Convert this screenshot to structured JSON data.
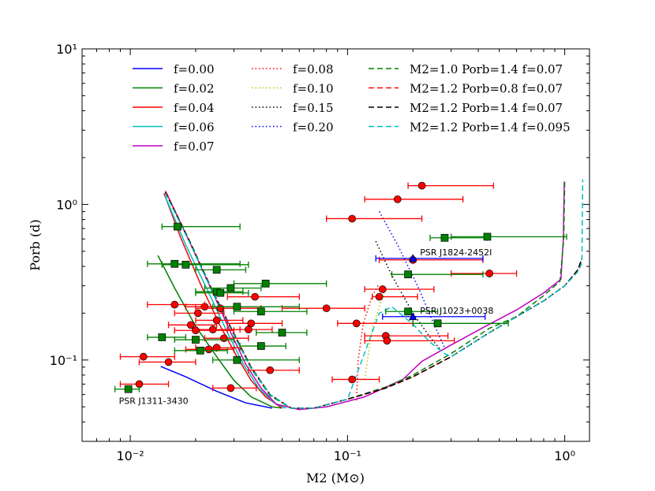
{
  "chart_data": {
    "type": "scatter",
    "title": "",
    "xlabel": "M2 (M⊙)",
    "ylabel": "Porb (d)",
    "x_scale": "log",
    "y_scale": "log",
    "xlim": [
      0.006,
      1.3
    ],
    "ylim": [
      0.03,
      10
    ],
    "x_ticks": [
      {
        "value": 0.01,
        "label": "10⁻²"
      },
      {
        "value": 0.1,
        "label": "10⁻¹"
      },
      {
        "value": 1,
        "label": "10⁰"
      }
    ],
    "y_ticks": [
      {
        "value": 0.1,
        "label": "10⁻¹"
      },
      {
        "value": 1,
        "label": "10⁰"
      },
      {
        "value": 10,
        "label": "10¹"
      }
    ],
    "legend_position": "top",
    "legend": [
      {
        "label": "f=0.00",
        "color": "#0000ff",
        "style": "solid"
      },
      {
        "label": "f=0.02",
        "color": "#008000",
        "style": "solid"
      },
      {
        "label": "f=0.04",
        "color": "#ff0000",
        "style": "solid"
      },
      {
        "label": "f=0.06",
        "color": "#00bfbf",
        "style": "solid"
      },
      {
        "label": "f=0.07",
        "color": "#bf00bf",
        "style": "solid"
      },
      {
        "label": "f=0.08",
        "color": "#ff0000",
        "style": "dotted"
      },
      {
        "label": "f=0.10",
        "color": "#bfbf00",
        "style": "dotted"
      },
      {
        "label": "f=0.15",
        "color": "#000000",
        "style": "dotted"
      },
      {
        "label": "f=0.20",
        "color": "#0000ff",
        "style": "dotted"
      },
      {
        "label": "M2=1.0 Porb=1.4 f=0.07",
        "color": "#008000",
        "style": "dashed"
      },
      {
        "label": "M2=1.2 Porb=0.8 f=0.07",
        "color": "#ff0000",
        "style": "dashed"
      },
      {
        "label": "M2=1.2 Porb=1.4 f=0.07",
        "color": "#000000",
        "style": "dashed"
      },
      {
        "label": "M2=1.2 Porb=1.4 f=0.095",
        "color": "#00bfbf",
        "style": "dashed"
      }
    ],
    "series": [
      {
        "name": "f=0.00",
        "color": "#0000ff",
        "style": "solid",
        "points": [
          [
            0.0138,
            0.091
          ],
          [
            0.018,
            0.078
          ],
          [
            0.025,
            0.063
          ],
          [
            0.034,
            0.053
          ],
          [
            0.045,
            0.049
          ]
        ]
      },
      {
        "name": "f=0.02",
        "color": "#008000",
        "style": "solid",
        "points": [
          [
            0.0134,
            0.47
          ],
          [
            0.016,
            0.29
          ],
          [
            0.02,
            0.165
          ],
          [
            0.025,
            0.105
          ],
          [
            0.03,
            0.074
          ],
          [
            0.036,
            0.058
          ],
          [
            0.045,
            0.05
          ],
          [
            0.05,
            0.049
          ]
        ]
      },
      {
        "name": "f=0.04",
        "color": "#ff0000",
        "style": "solid",
        "points": [
          [
            0.0143,
            1.18
          ],
          [
            0.017,
            0.62
          ],
          [
            0.021,
            0.31
          ],
          [
            0.026,
            0.165
          ],
          [
            0.031,
            0.105
          ],
          [
            0.036,
            0.074
          ],
          [
            0.042,
            0.058
          ],
          [
            0.05,
            0.049
          ]
        ]
      },
      {
        "name": "f=0.06",
        "color": "#00bfbf",
        "style": "solid",
        "points": [
          [
            0.0145,
            1.12
          ],
          [
            0.018,
            0.55
          ],
          [
            0.023,
            0.27
          ],
          [
            0.028,
            0.15
          ],
          [
            0.033,
            0.095
          ],
          [
            0.039,
            0.066
          ],
          [
            0.046,
            0.053
          ],
          [
            0.052,
            0.049
          ]
        ]
      },
      {
        "name": "f=0.07",
        "color": "#bf00bf",
        "style": "solid",
        "points": [
          [
            0.0147,
            1.18
          ],
          [
            0.019,
            0.55
          ],
          [
            0.024,
            0.27
          ],
          [
            0.029,
            0.15
          ],
          [
            0.034,
            0.094
          ],
          [
            0.04,
            0.066
          ],
          [
            0.047,
            0.052
          ],
          [
            0.06,
            0.048
          ],
          [
            0.08,
            0.05
          ],
          [
            0.12,
            0.058
          ],
          [
            0.18,
            0.075
          ],
          [
            0.22,
            0.098
          ],
          [
            0.3,
            0.125
          ],
          [
            0.45,
            0.17
          ],
          [
            0.6,
            0.21
          ],
          [
            0.8,
            0.27
          ],
          [
            0.96,
            0.33
          ],
          [
            0.985,
            0.6
          ],
          [
            0.995,
            1.4
          ]
        ]
      },
      {
        "name": "f=0.08",
        "color": "#ff0000",
        "style": "dotted",
        "points": [
          [
            0.11,
            0.055
          ],
          [
            0.112,
            0.1
          ],
          [
            0.118,
            0.17
          ],
          [
            0.13,
            0.26
          ],
          [
            0.14,
            0.31
          ]
        ]
      },
      {
        "name": "f=0.10",
        "color": "#bfbf00",
        "style": "dotted",
        "points": [
          [
            0.12,
            0.075
          ],
          [
            0.13,
            0.16
          ],
          [
            0.15,
            0.29
          ]
        ]
      },
      {
        "name": "f=0.15",
        "color": "#000000",
        "style": "dotted",
        "points": [
          [
            0.135,
            0.58
          ],
          [
            0.16,
            0.35
          ],
          [
            0.2,
            0.2
          ],
          [
            0.24,
            0.14
          ],
          [
            0.27,
            0.115
          ]
        ]
      },
      {
        "name": "f=0.20",
        "color": "#0000ff",
        "style": "dotted",
        "points": [
          [
            0.14,
            0.9
          ],
          [
            0.17,
            0.55
          ],
          [
            0.21,
            0.3
          ],
          [
            0.25,
            0.17
          ],
          [
            0.28,
            0.12
          ]
        ]
      },
      {
        "name": "M2=1.0 Porb=1.4 f=0.07",
        "color": "#008000",
        "style": "dashed",
        "points": [
          [
            0.0145,
            1.2
          ],
          [
            0.019,
            0.55
          ],
          [
            0.024,
            0.27
          ],
          [
            0.03,
            0.145
          ],
          [
            0.036,
            0.088
          ],
          [
            0.044,
            0.059
          ],
          [
            0.055,
            0.049
          ],
          [
            0.07,
            0.049
          ],
          [
            0.1,
            0.056
          ],
          [
            0.15,
            0.067
          ],
          [
            0.2,
            0.08
          ],
          [
            0.3,
            0.11
          ],
          [
            0.45,
            0.16
          ],
          [
            0.6,
            0.19
          ],
          [
            0.8,
            0.26
          ],
          [
            0.95,
            0.32
          ],
          [
            0.99,
            0.6
          ],
          [
            1.0,
            1.45
          ]
        ]
      },
      {
        "name": "M2=1.2 Porb=0.8 f=0.07",
        "color": "#ff0000",
        "style": "dashed",
        "points": [
          [
            0.0145,
            1.22
          ],
          [
            0.019,
            0.56
          ],
          [
            0.024,
            0.275
          ],
          [
            0.03,
            0.148
          ],
          [
            0.036,
            0.09
          ],
          [
            0.044,
            0.06
          ],
          [
            0.055,
            0.049
          ],
          [
            0.07,
            0.049
          ],
          [
            0.1,
            0.056
          ],
          [
            0.15,
            0.066
          ],
          [
            0.2,
            0.078
          ],
          [
            0.3,
            0.105
          ],
          [
            0.45,
            0.15
          ],
          [
            0.6,
            0.19
          ],
          [
            0.8,
            0.24
          ],
          [
            1.0,
            0.3
          ],
          [
            1.15,
            0.38
          ],
          [
            1.2,
            0.45
          ]
        ]
      },
      {
        "name": "M2=1.2 Porb=1.4 f=0.07",
        "color": "#000000",
        "style": "dashed",
        "points": [
          [
            0.0145,
            1.2
          ],
          [
            0.019,
            0.56
          ],
          [
            0.024,
            0.275
          ],
          [
            0.03,
            0.148
          ],
          [
            0.036,
            0.09
          ],
          [
            0.044,
            0.06
          ],
          [
            0.055,
            0.049
          ],
          [
            0.07,
            0.049
          ],
          [
            0.1,
            0.056
          ],
          [
            0.15,
            0.066
          ],
          [
            0.2,
            0.078
          ],
          [
            0.3,
            0.105
          ],
          [
            0.45,
            0.15
          ],
          [
            0.6,
            0.19
          ],
          [
            0.8,
            0.24
          ],
          [
            1.0,
            0.3
          ],
          [
            1.15,
            0.38
          ],
          [
            1.2,
            0.45
          ]
        ]
      },
      {
        "name": "M2=1.2 Porb=1.4 f=0.095",
        "color": "#00bfbf",
        "style": "dashed",
        "points": [
          [
            0.0145,
            1.18
          ],
          [
            0.019,
            0.55
          ],
          [
            0.024,
            0.27
          ],
          [
            0.03,
            0.145
          ],
          [
            0.036,
            0.089
          ],
          [
            0.044,
            0.06
          ],
          [
            0.055,
            0.049
          ],
          [
            0.07,
            0.049
          ],
          [
            0.1,
            0.056
          ],
          [
            0.14,
            0.2
          ],
          [
            0.16,
            0.22
          ],
          [
            0.2,
            0.17
          ],
          [
            0.24,
            0.13
          ],
          [
            0.28,
            0.11
          ],
          [
            0.3,
            0.105
          ],
          [
            0.45,
            0.15
          ],
          [
            0.6,
            0.19
          ],
          [
            0.8,
            0.24
          ],
          [
            1.0,
            0.3
          ],
          [
            1.15,
            0.37
          ],
          [
            1.2,
            0.42
          ],
          [
            1.21,
            1.45
          ]
        ]
      }
    ],
    "data_points": [
      {
        "marker": "circle",
        "color": "#ff0000",
        "points": [
          [
            0.22,
            1.32,
            0.19,
            0.47
          ],
          [
            0.17,
            1.08,
            0.12,
            0.34
          ],
          [
            0.105,
            0.81,
            0.08,
            0.22
          ],
          [
            0.2,
            0.44,
            0.14,
            0.42
          ],
          [
            0.45,
            0.36,
            0.3,
            0.6
          ],
          [
            0.145,
            0.285,
            0.12,
            0.25
          ],
          [
            0.14,
            0.255,
            0.13,
            0.21
          ],
          [
            0.08,
            0.215,
            0.05,
            0.12
          ],
          [
            0.11,
            0.172,
            0.09,
            0.2
          ],
          [
            0.15,
            0.143,
            0.12,
            0.29
          ],
          [
            0.152,
            0.133,
            0.12,
            0.31
          ],
          [
            0.0205,
            0.2,
            0.016,
            0.027
          ],
          [
            0.022,
            0.22,
            0.018,
            0.03
          ],
          [
            0.026,
            0.215,
            0.02,
            0.04
          ],
          [
            0.036,
            0.172,
            0.028,
            0.05
          ],
          [
            0.0375,
            0.255,
            0.028,
            0.06
          ],
          [
            0.025,
            0.18,
            0.02,
            0.033
          ],
          [
            0.024,
            0.157,
            0.02,
            0.032
          ],
          [
            0.019,
            0.168,
            0.015,
            0.025
          ],
          [
            0.016,
            0.227,
            0.012,
            0.022
          ],
          [
            0.02,
            0.155,
            0.016,
            0.03
          ],
          [
            0.027,
            0.138,
            0.022,
            0.035
          ],
          [
            0.025,
            0.12,
            0.02,
            0.032
          ],
          [
            0.023,
            0.117,
            0.018,
            0.03
          ],
          [
            0.035,
            0.157,
            0.028,
            0.045
          ],
          [
            0.0115,
            0.105,
            0.009,
            0.016
          ],
          [
            0.015,
            0.097,
            0.011,
            0.02
          ],
          [
            0.044,
            0.086,
            0.035,
            0.06
          ],
          [
            0.105,
            0.075,
            0.085,
            0.14
          ],
          [
            0.011,
            0.07,
            0.009,
            0.015
          ],
          [
            0.029,
            0.066,
            0.024,
            0.038
          ]
        ]
      },
      {
        "marker": "square",
        "color": "#008000",
        "points": [
          [
            0.0165,
            0.72,
            0.014,
            0.032
          ],
          [
            0.44,
            0.62,
            0.3,
            1.02
          ],
          [
            0.28,
            0.61,
            0.24,
            0.44
          ],
          [
            0.016,
            0.415,
            0.012,
            0.032
          ],
          [
            0.018,
            0.41,
            0.014,
            0.035
          ],
          [
            0.025,
            0.38,
            0.02,
            0.034
          ],
          [
            0.19,
            0.355,
            0.16,
            0.42
          ],
          [
            0.042,
            0.31,
            0.03,
            0.08
          ],
          [
            0.025,
            0.275,
            0.02,
            0.033
          ],
          [
            0.026,
            0.27,
            0.02,
            0.035
          ],
          [
            0.029,
            0.29,
            0.022,
            0.04
          ],
          [
            0.031,
            0.22,
            0.024,
            0.06
          ],
          [
            0.04,
            0.205,
            0.03,
            0.065
          ],
          [
            0.19,
            0.205,
            0.15,
            0.26
          ],
          [
            0.26,
            0.172,
            0.2,
            0.55
          ],
          [
            0.05,
            0.15,
            0.038,
            0.065
          ],
          [
            0.014,
            0.14,
            0.012,
            0.018
          ],
          [
            0.02,
            0.135,
            0.016,
            0.03
          ],
          [
            0.04,
            0.123,
            0.032,
            0.052
          ],
          [
            0.021,
            0.115,
            0.016,
            0.028
          ],
          [
            0.031,
            0.1,
            0.024,
            0.06
          ],
          [
            0.0098,
            0.065,
            0.0085,
            0.011
          ]
        ]
      },
      {
        "marker": "triangle",
        "color": "#0000ff",
        "points": [
          [
            0.2,
            0.45,
            0.135,
            0.42
          ],
          [
            0.2,
            0.19,
            0.145,
            0.43
          ]
        ]
      }
    ],
    "annotations": [
      {
        "text": "PSR J1824-2452I",
        "x": 0.2,
        "y": 0.45
      },
      {
        "text": "PSR J1023+0038",
        "x": 0.2,
        "y": 0.19
      },
      {
        "text": "PSR J1311-3430",
        "x": 0.0098,
        "y": 0.065
      }
    ]
  }
}
